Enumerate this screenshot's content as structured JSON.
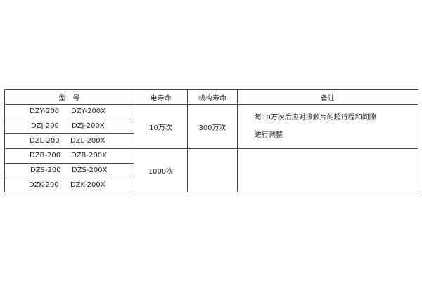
{
  "headers": {
    "model": "型　号",
    "electrical_life": "电寿命",
    "mechanical_life": "机构寿命",
    "remarks": "备注"
  },
  "rows": [
    {
      "model_a": "DZY-200",
      "model_b": "DZY-200X"
    },
    {
      "model_a": "DZJ-200",
      "model_b": "DZJ-200X"
    },
    {
      "model_a": "DZL-200",
      "model_b": "DZL-200X"
    },
    {
      "model_a": "DZB-200",
      "model_b": "DZB-200X"
    },
    {
      "model_a": "DZS-200",
      "model_b": "DZS-200X"
    },
    {
      "model_a": "DZK-200",
      "model_b": "DZK-200X"
    }
  ],
  "groups": [
    {
      "electrical_life": "10万次",
      "mechanical_life": "300万次",
      "remarks": [
        "每10万次后应对接触片的超行程和间隙",
        "进行调整"
      ]
    },
    {
      "electrical_life": "1000次",
      "mechanical_life": "",
      "remarks": []
    }
  ]
}
